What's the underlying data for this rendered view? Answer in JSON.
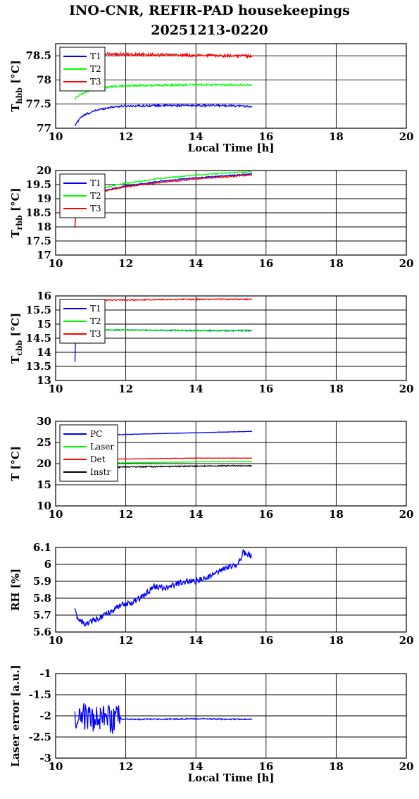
{
  "title_line1": "INO-CNR, REFIR-PAD housekeepings",
  "title_line2": "20251213-0220",
  "chart_data": [
    {
      "id": "tbb-hbb",
      "type": "line",
      "ylabel_main": "T",
      "ylabel_sub": "hbb",
      "ylabel_unit": " [°C]",
      "xlabel": "Local Time [h]",
      "xlim": [
        10,
        20
      ],
      "xticks": [
        10,
        12,
        14,
        16,
        18,
        20
      ],
      "ylim": [
        77,
        78.75
      ],
      "yticks": [
        77,
        77.5,
        78,
        78.5
      ],
      "ytick_labels": [
        "77",
        "77.5",
        "78",
        "78.5"
      ],
      "legend_placement": "top-left",
      "series": [
        {
          "name": "T1",
          "color": "#0000ff",
          "x": [
            10.55,
            10.7,
            10.9,
            11.2,
            11.6,
            12.0,
            13.0,
            14.0,
            15.0,
            15.6
          ],
          "y": [
            77.05,
            77.22,
            77.3,
            77.38,
            77.44,
            77.46,
            77.47,
            77.47,
            77.47,
            77.45
          ],
          "noise": 0.02
        },
        {
          "name": "T2",
          "color": "#00ff00",
          "x": [
            10.55,
            10.7,
            10.9,
            11.2,
            11.6,
            12.0,
            13.0,
            14.0,
            15.0,
            15.6
          ],
          "y": [
            77.62,
            77.7,
            77.76,
            77.82,
            77.86,
            77.88,
            77.89,
            77.9,
            77.9,
            77.89
          ],
          "noise": 0.02
        },
        {
          "name": "T3",
          "color": "#ff0000",
          "x": [
            10.55,
            11.0,
            11.5,
            12.0,
            13.0,
            14.0,
            15.0,
            15.6
          ],
          "y": [
            78.5,
            78.52,
            78.54,
            78.53,
            78.52,
            78.51,
            78.5,
            78.5
          ],
          "noise": 0.03
        }
      ]
    },
    {
      "id": "tbb-rbb",
      "type": "line",
      "ylabel_main": "T",
      "ylabel_sub": "rbb",
      "ylabel_unit": " [°C]",
      "xlabel": "",
      "xlim": [
        10,
        20
      ],
      "xticks": [
        10,
        12,
        14,
        16,
        18,
        20
      ],
      "ylim": [
        17,
        20
      ],
      "yticks": [
        17,
        17.5,
        18,
        18.5,
        19,
        19.5,
        20
      ],
      "ytick_labels": [
        "17",
        "17.5",
        "18",
        "18.5",
        "19",
        "19.5",
        "20"
      ],
      "legend_placement": "top-left",
      "series": [
        {
          "name": "T1",
          "color": "#0000ff",
          "x": [
            10.55,
            10.6,
            11.0,
            11.5,
            12.0,
            13.0,
            14.0,
            15.0,
            15.6
          ],
          "y": [
            18.0,
            19.1,
            19.2,
            19.32,
            19.45,
            19.62,
            19.74,
            19.83,
            19.88
          ],
          "noise": 0.02
        },
        {
          "name": "T2",
          "color": "#00ff00",
          "x": [
            10.55,
            10.6,
            11.0,
            11.5,
            12.0,
            13.0,
            14.0,
            15.0,
            15.6
          ],
          "y": [
            17.95,
            19.05,
            19.28,
            19.42,
            19.55,
            19.72,
            19.84,
            19.92,
            19.96
          ],
          "noise": 0.02
        },
        {
          "name": "T3",
          "color": "#ff0000",
          "x": [
            10.55,
            10.6,
            11.0,
            11.5,
            12.0,
            13.0,
            14.0,
            15.0,
            15.6
          ],
          "y": [
            18.0,
            18.95,
            19.15,
            19.3,
            19.42,
            19.58,
            19.7,
            19.79,
            19.84
          ],
          "noise": 0.02
        }
      ]
    },
    {
      "id": "tbb-cbb",
      "type": "line",
      "ylabel_main": "T",
      "ylabel_sub": "cbb",
      "ylabel_unit": " [°C]",
      "xlabel": "",
      "xlim": [
        10,
        20
      ],
      "xticks": [
        10,
        12,
        14,
        16,
        18,
        20
      ],
      "ylim": [
        13,
        16
      ],
      "yticks": [
        13,
        13.5,
        14,
        14.5,
        15,
        15.5,
        16
      ],
      "ytick_labels": [
        "13",
        "13.5",
        "14",
        "14.5",
        "15",
        "15.5",
        "16"
      ],
      "legend_placement": "top-left",
      "series": [
        {
          "name": "T1",
          "color": "#0000ff",
          "x": [
            10.55,
            10.57,
            10.6,
            11.0,
            12.0,
            13.0,
            14.0,
            15.0,
            15.6
          ],
          "y": [
            13.65,
            14.5,
            14.78,
            14.8,
            14.79,
            14.78,
            14.77,
            14.77,
            14.77
          ],
          "noise": 0.02
        },
        {
          "name": "T2",
          "color": "#00ff00",
          "x": [
            10.6,
            11.0,
            12.0,
            13.0,
            14.0,
            15.0,
            15.6
          ],
          "y": [
            14.8,
            14.8,
            14.79,
            14.78,
            14.77,
            14.77,
            14.78
          ],
          "noise": 0.02
        },
        {
          "name": "T3",
          "color": "#ff0000",
          "x": [
            10.6,
            11.0,
            12.0,
            13.0,
            14.0,
            15.0,
            15.6
          ],
          "y": [
            15.85,
            15.85,
            15.86,
            15.87,
            15.88,
            15.88,
            15.88
          ],
          "noise": 0.02
        }
      ]
    },
    {
      "id": "temps",
      "type": "line",
      "ylabel_main": "T [°C]",
      "ylabel_sub": "",
      "ylabel_unit": "",
      "xlabel": "",
      "xlim": [
        10,
        20
      ],
      "xticks": [
        10,
        12,
        14,
        16,
        18,
        20
      ],
      "ylim": [
        10,
        30
      ],
      "yticks": [
        10,
        15,
        20,
        25,
        30
      ],
      "ytick_labels": [
        "10",
        "15",
        "20",
        "25",
        "30"
      ],
      "legend_placement": "top-left",
      "series": [
        {
          "name": "PC",
          "color": "#0000ff",
          "x": [
            10.55,
            11.0,
            12.0,
            13.0,
            14.0,
            15.0,
            15.6
          ],
          "y": [
            26.5,
            26.6,
            26.9,
            27.1,
            27.3,
            27.5,
            27.6
          ],
          "noise": 0.05
        },
        {
          "name": "Laser",
          "color": "#00ff00",
          "x": [
            10.55,
            11.0,
            12.0,
            13.0,
            14.0,
            15.0,
            15.6
          ],
          "y": [
            19.9,
            20.0,
            20.2,
            20.3,
            20.4,
            20.5,
            20.5
          ],
          "noise": 0.05
        },
        {
          "name": "Det",
          "color": "#ff0000",
          "x": [
            10.55,
            11.0,
            12.0,
            13.0,
            14.0,
            15.0,
            15.6
          ],
          "y": [
            20.8,
            20.9,
            21.1,
            21.2,
            21.3,
            21.3,
            21.3
          ],
          "noise": 0.05
        },
        {
          "name": "Instr",
          "color": "#000000",
          "x": [
            10.55,
            11.0,
            12.0,
            13.0,
            14.0,
            15.0,
            15.6
          ],
          "y": [
            19.0,
            19.1,
            19.2,
            19.3,
            19.4,
            19.5,
            19.5
          ],
          "noise": 0.12
        }
      ]
    },
    {
      "id": "rh",
      "type": "line",
      "ylabel_main": "RH [%]",
      "ylabel_sub": "",
      "ylabel_unit": "",
      "xlabel": "",
      "xlim": [
        10,
        20
      ],
      "xticks": [
        10,
        12,
        14,
        16,
        18,
        20
      ],
      "ylim": [
        5.6,
        6.1
      ],
      "yticks": [
        5.6,
        5.7,
        5.8,
        5.9,
        6.0,
        6.1
      ],
      "ytick_labels": [
        "5.6",
        "5.7",
        "5.8",
        "5.9",
        "6",
        "6.1"
      ],
      "legend_placement": "none",
      "series": [
        {
          "name": "",
          "color": "#0000ff",
          "x": [
            10.55,
            10.6,
            10.8,
            11.0,
            11.3,
            11.6,
            11.9,
            12.2,
            12.5,
            12.8,
            13.1,
            13.4,
            13.7,
            14.0,
            14.3,
            14.6,
            14.9,
            15.2,
            15.35,
            15.6
          ],
          "y": [
            5.75,
            5.69,
            5.65,
            5.66,
            5.69,
            5.72,
            5.76,
            5.78,
            5.81,
            5.87,
            5.86,
            5.88,
            5.9,
            5.9,
            5.92,
            5.95,
            5.98,
            6.0,
            6.07,
            6.05
          ],
          "noise": 0.018
        }
      ]
    },
    {
      "id": "laser-error",
      "type": "line",
      "ylabel_main": "Laser error [a.u.]",
      "ylabel_sub": "",
      "ylabel_unit": "",
      "xlabel": "Local Time [h]",
      "xlim": [
        10,
        20
      ],
      "xticks": [
        10,
        12,
        14,
        16,
        18,
        20
      ],
      "ylim": [
        -3,
        -1
      ],
      "yticks": [
        -3,
        -2.5,
        -2,
        -1.5,
        -1
      ],
      "ytick_labels": [
        "-3",
        "-2.5",
        "-2",
        "-1.5",
        "-1"
      ],
      "legend_placement": "none",
      "series": [
        {
          "name": "",
          "color": "#0000ff",
          "x": [
            10.55,
            11.0,
            11.5,
            11.85,
            11.9,
            12.5,
            13.0,
            14.0,
            15.0,
            15.6
          ],
          "y": [
            -2.05,
            -2.05,
            -2.05,
            -2.05,
            -2.08,
            -2.08,
            -2.08,
            -2.07,
            -2.08,
            -2.08
          ],
          "noise": 0.015,
          "burst": [
            10.55,
            11.85,
            0.22
          ]
        }
      ]
    }
  ]
}
